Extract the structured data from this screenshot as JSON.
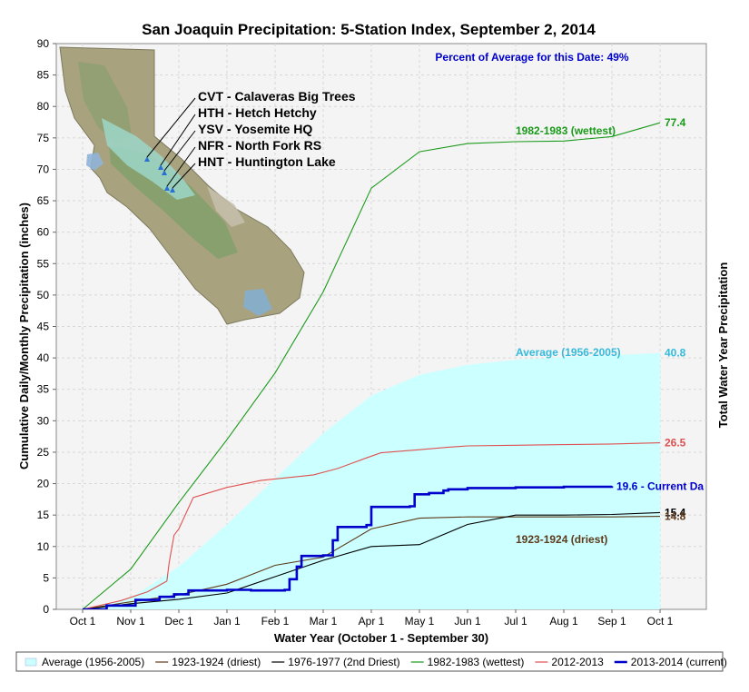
{
  "chart_data": {
    "type": "line",
    "title": "San Joaquin Precipitation: 5-Station Index, September 2, 2014",
    "xlabel": "Water Year (October 1 - September 30)",
    "ylabel": "Cumulative Daily/Monthly Precipitation (inches)",
    "y2label": "Total Water Year Precipitation",
    "ylim": [
      0,
      90
    ],
    "yticks": [
      0,
      5,
      10,
      15,
      20,
      25,
      30,
      35,
      40,
      45,
      50,
      55,
      60,
      65,
      70,
      75,
      80,
      85,
      90
    ],
    "categories": [
      "Oct 1",
      "Nov 1",
      "Dec 1",
      "Jan 1",
      "Feb 1",
      "Mar 1",
      "Apr 1",
      "May 1",
      "Jun 1",
      "Jul 1",
      "Aug 1",
      "Sep 1",
      "Oct 1"
    ],
    "grid": true,
    "legend_position": "bottom",
    "percent_note": "Percent of Average for this Date: 49%",
    "stations": [
      "CVT - Calaveras Big Trees",
      "HTH - Hetch Hetchy",
      "YSV - Yosemite HQ",
      "NFR - North Fork RS",
      "HNT - Huntington Lake"
    ],
    "series": [
      {
        "name": "Average (1956-2005)",
        "kind": "area",
        "color": "#ccffff",
        "x": [
          0,
          1,
          2,
          3,
          4,
          5,
          6,
          7,
          8,
          9,
          10,
          11,
          12
        ],
        "values": [
          0,
          1.8,
          6.8,
          13.5,
          20.8,
          28.0,
          34.0,
          37.3,
          38.9,
          39.7,
          40.1,
          40.4,
          40.8
        ]
      },
      {
        "name": "1923-1924 (driest)",
        "color": "#5c3a1a",
        "x": [
          0,
          1,
          2,
          3,
          4,
          5,
          6,
          7,
          8,
          9,
          10,
          11,
          12
        ],
        "values": [
          0,
          1.2,
          2.3,
          4.0,
          7.0,
          8.3,
          12.8,
          14.5,
          14.7,
          14.7,
          14.7,
          14.7,
          14.8
        ]
      },
      {
        "name": "1976-1977 (2nd Driest)",
        "color": "#000000",
        "x": [
          0,
          1,
          2,
          3,
          4,
          5,
          6,
          7,
          8,
          9,
          10,
          11,
          12
        ],
        "values": [
          0,
          0.9,
          1.6,
          2.6,
          5.2,
          7.8,
          10.0,
          10.3,
          13.5,
          15.0,
          15.0,
          15.1,
          15.4
        ]
      },
      {
        "name": "1982-1983 (wettest)",
        "color": "#1a9a1a",
        "x": [
          0,
          1,
          2,
          3,
          4,
          5,
          6,
          7,
          8,
          9,
          10,
          11,
          12
        ],
        "values": [
          0,
          6.4,
          17.0,
          27.0,
          37.6,
          50.5,
          67.0,
          72.8,
          74.1,
          74.4,
          74.5,
          75.2,
          77.4
        ]
      },
      {
        "name": "2012-2013",
        "color": "#e05050",
        "x": [
          0,
          0.8,
          1.35,
          1.75,
          1.8,
          1.9,
          2.0,
          2.3,
          3.0,
          3.7,
          4.2,
          4.8,
          5.3,
          5.9,
          6.2,
          7.0,
          7.6,
          8.0,
          9.0,
          10.0,
          11.0,
          12.0
        ],
        "values": [
          0,
          1.4,
          2.8,
          4.5,
          7.5,
          11.8,
          12.8,
          17.8,
          19.4,
          20.5,
          20.9,
          21.4,
          22.4,
          24.1,
          24.9,
          25.4,
          25.8,
          26.0,
          26.1,
          26.2,
          26.3,
          26.5
        ]
      },
      {
        "name": "2013-2014 (current)",
        "color": "#0000cc",
        "step": true,
        "x": [
          0,
          0.5,
          1.1,
          1.6,
          1.9,
          2.2,
          3.0,
          3.5,
          4.2,
          4.3,
          4.45,
          4.55,
          5.0,
          5.2,
          5.3,
          5.9,
          6.0,
          6.8,
          6.9,
          7.2,
          7.5,
          7.6,
          8.0,
          9.0,
          10.0,
          11.0
        ],
        "values": [
          0,
          0.6,
          1.5,
          2.0,
          2.4,
          3.0,
          3.1,
          3.0,
          3.1,
          4.8,
          6.8,
          8.5,
          8.6,
          11.0,
          13.1,
          13.4,
          16.3,
          16.4,
          18.3,
          18.5,
          18.9,
          19.1,
          19.3,
          19.4,
          19.5,
          19.6
        ]
      }
    ],
    "end_labels": [
      {
        "series": "1982-1983 (wettest)",
        "text": "77.4",
        "color": "#1a9a1a"
      },
      {
        "series": "Average (1956-2005)",
        "text": "40.8",
        "color": "#33bbdd"
      },
      {
        "series": "2012-2013",
        "text": "26.5",
        "color": "#e05050"
      },
      {
        "series": "2013-2014 (current)",
        "text": "19.6 -  Current Da",
        "color": "#0000cc"
      },
      {
        "series": "1976-1977 (2nd Driest)",
        "text": "15.4",
        "color": "#000000"
      },
      {
        "series": "1923-1924 (driest)",
        "text": "14.8",
        "color": "#5c3a1a"
      }
    ],
    "annotations": [
      {
        "text": "1982-1983 (wettest)",
        "color": "#1a9a1a"
      },
      {
        "text": "Average (1956-2005)",
        "color": "#33bbdd"
      },
      {
        "text": "1923-1924 (driest)",
        "color": "#5c3a1a"
      }
    ]
  }
}
